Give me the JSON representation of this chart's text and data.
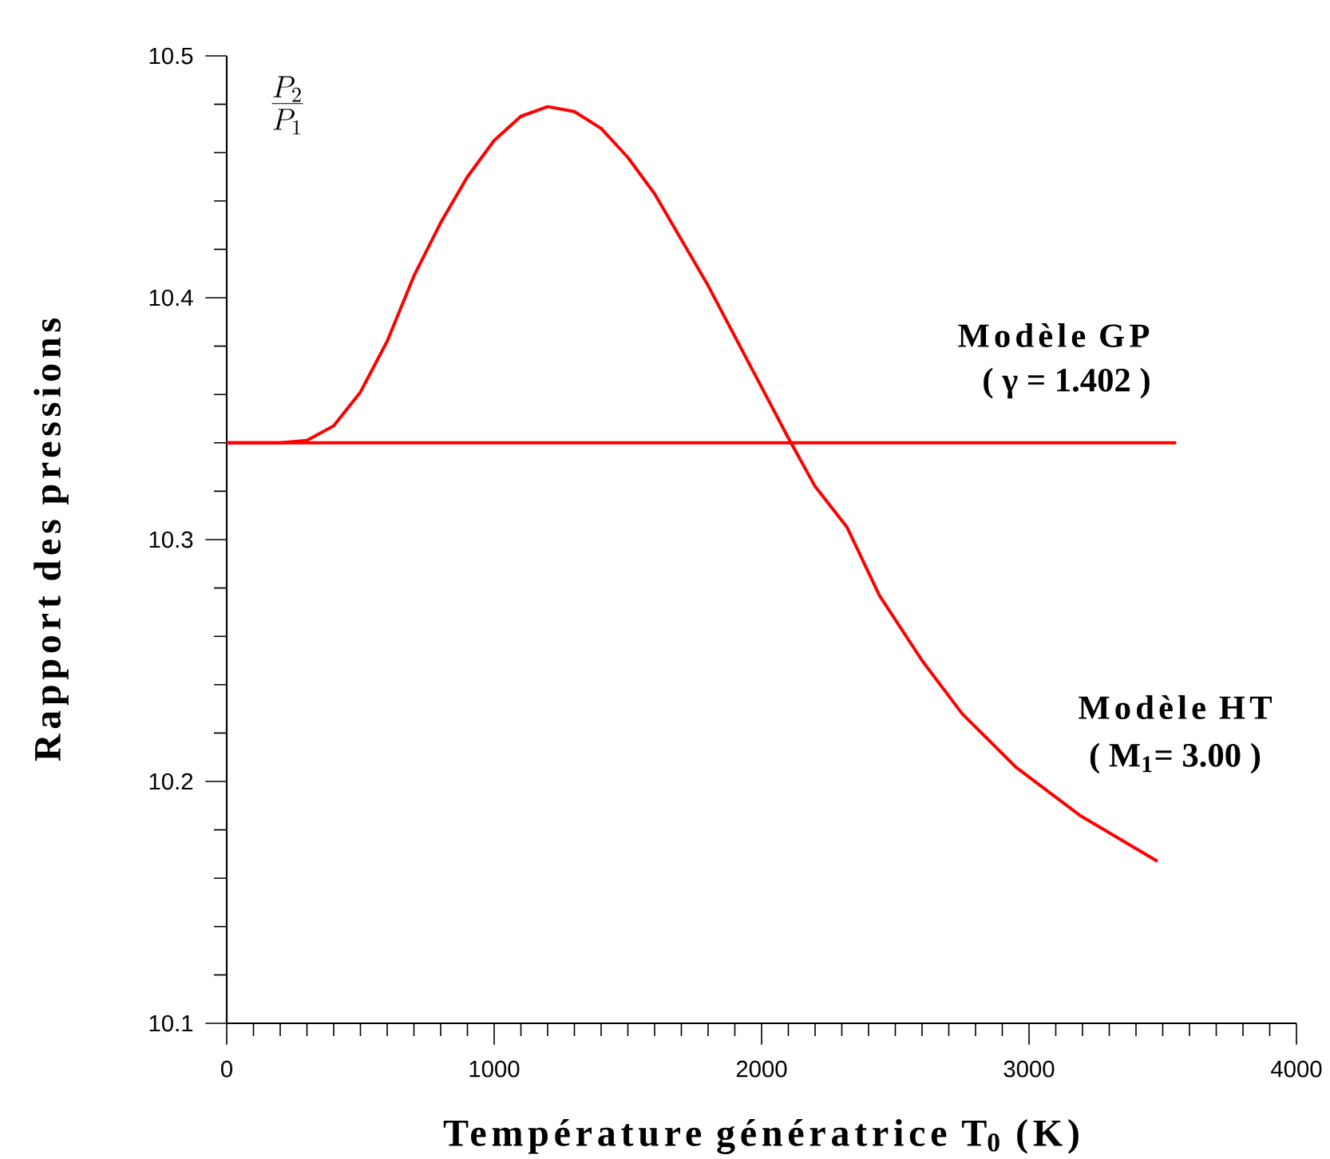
{
  "chart_data": {
    "type": "line",
    "xlabel": "Température génératrice T$_{0}$ (K)",
    "ylabel": "Rapport des pressions",
    "annotations": [
      "\\frac{P_2}{P_1}",
      "( γ = 1.402 )",
      "( M$_{1}$= 3.00 )"
    ],
    "xlim": [
      0,
      4000
    ],
    "xticks": [
      0,
      1000,
      2000,
      3000,
      4000
    ],
    "ylim": [
      10.1,
      10.5
    ],
    "yticks": [
      10.1,
      10.2,
      10.3,
      10.4,
      10.5
    ],
    "grid": false,
    "legend": false,
    "marker": "none",
    "line_style": "solid",
    "series": [
      {
        "name": "Modèle GP",
        "color": "#ff0000",
        "x": [
          0,
          3550
        ],
        "values": [
          10.34,
          10.34
        ]
      },
      {
        "name": "Modèle HT",
        "color": "#ff0000",
        "x": [
          0,
          100,
          200,
          300,
          400,
          500,
          600,
          700,
          800,
          900,
          1000,
          1100,
          1200,
          1300,
          1400,
          1500,
          1600,
          1700,
          1800,
          1900,
          2000,
          2100,
          2200,
          2320,
          2440,
          2600,
          2750,
          2950,
          3190,
          3480
        ],
        "values": [
          10.34,
          10.34,
          10.34,
          10.341,
          10.347,
          10.361,
          10.382,
          10.409,
          10.431,
          10.45,
          10.465,
          10.475,
          10.479,
          10.477,
          10.47,
          10.458,
          10.443,
          10.424,
          10.405,
          10.384,
          10.363,
          10.342,
          10.322,
          10.305,
          10.277,
          10.25,
          10.228,
          10.206,
          10.186,
          10.167
        ]
      }
    ]
  }
}
